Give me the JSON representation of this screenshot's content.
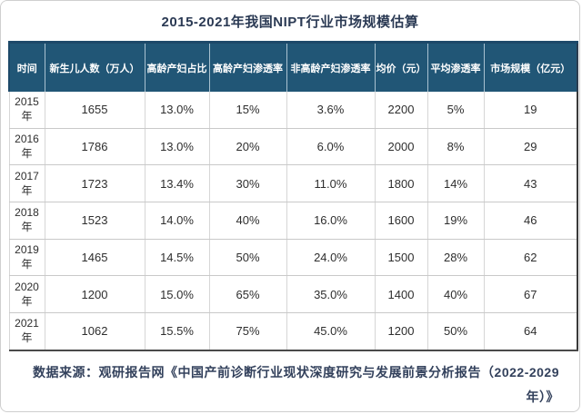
{
  "chart_data": {
    "type": "table",
    "title": "2015-2021年我国NIPT行业市场规模估算",
    "columns": [
      "时间",
      "新生儿人数（万人）",
      "高龄产妇占比",
      "高龄产妇渗透率",
      "非高龄产妇渗透率",
      "均价（元）",
      "平均渗透率",
      "市场规模（亿元）"
    ],
    "rows": [
      [
        "2015年",
        "1655",
        "13.0%",
        "15%",
        "3.6%",
        "2200",
        "5%",
        "19"
      ],
      [
        "2016年",
        "1786",
        "13.0%",
        "20%",
        "6.0%",
        "2000",
        "8%",
        "29"
      ],
      [
        "2017年",
        "1723",
        "13.4%",
        "30%",
        "11.0%",
        "1800",
        "14%",
        "43"
      ],
      [
        "2018年",
        "1523",
        "14.0%",
        "40%",
        "16.0%",
        "1600",
        "19%",
        "46"
      ],
      [
        "2019年",
        "1465",
        "14.5%",
        "50%",
        "24.0%",
        "1500",
        "28%",
        "62"
      ],
      [
        "2020年",
        "1200",
        "15.0%",
        "65%",
        "35.0%",
        "1400",
        "40%",
        "67"
      ],
      [
        "2021年",
        "1062",
        "15.5%",
        "75%",
        "45.0%",
        "1200",
        "50%",
        "64"
      ]
    ],
    "source": "数据来源：观研报告网《中国产前诊断行业现状深度研究与发展前景分析报告（2022-2029年）》"
  },
  "colors": {
    "header_bg": "#215676",
    "header_text": "#ffffff",
    "header_top_border": "#1d4969",
    "title_text": "#2b3a54",
    "body_text": "#2e2e2e",
    "grid_line": "#c9c9c9",
    "dark_border": "#3a3a3a",
    "source_text": "#33415c"
  }
}
